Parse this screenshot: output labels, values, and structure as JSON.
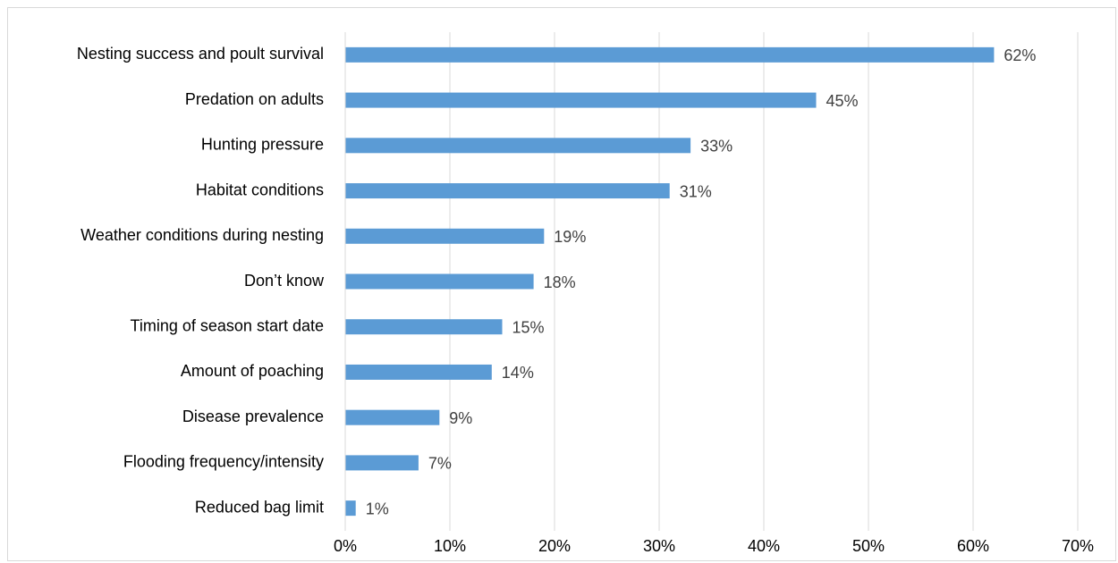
{
  "chart_data": {
    "type": "bar",
    "orientation": "horizontal",
    "categories": [
      "Nesting success and poult survival",
      "Predation on adults",
      "Hunting pressure",
      "Habitat conditions",
      "Weather conditions during nesting",
      "Don’t know",
      "Timing of season start date",
      "Amount of poaching",
      "Disease prevalence",
      "Flooding frequency/intensity",
      "Reduced bag limit"
    ],
    "values": [
      62,
      45,
      33,
      31,
      19,
      18,
      15,
      14,
      9,
      7,
      1
    ],
    "value_labels": [
      "62%",
      "45%",
      "33%",
      "31%",
      "19%",
      "18%",
      "15%",
      "14%",
      "9%",
      "7%",
      "1%"
    ],
    "x_ticks": [
      0,
      10,
      20,
      30,
      40,
      50,
      60,
      70
    ],
    "x_tick_labels": [
      "0%",
      "10%",
      "20%",
      "30%",
      "40%",
      "50%",
      "60%",
      "70%"
    ],
    "xlim": [
      0,
      70
    ],
    "title": "",
    "xlabel": "",
    "ylabel": "",
    "grid": "vertical",
    "legend": "none",
    "colors": {
      "bar": "#5b9bd5",
      "grid": "#d9d9d9",
      "text": "#000000",
      "value_label": "#404040"
    }
  }
}
